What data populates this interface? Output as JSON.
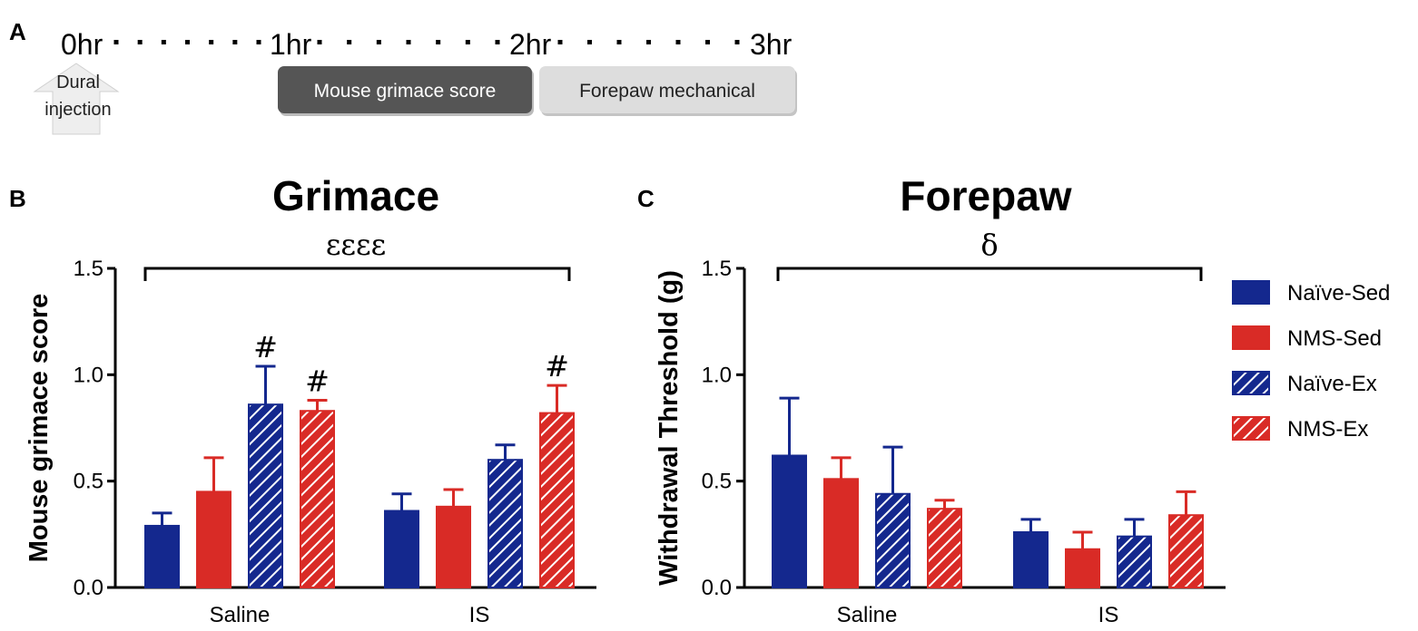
{
  "panels": {
    "a": "A",
    "b": "B",
    "c": "C"
  },
  "timeline": {
    "times": [
      "0hr",
      "1hr",
      "2hr",
      "3hr"
    ],
    "injection": {
      "line1": "Dural",
      "line2": "injection"
    },
    "box1": "Mouse grimace score",
    "box2": "Forepaw mechanical"
  },
  "colors": {
    "naive": "#14288e",
    "nms": "#d92b26",
    "box_dark": "#555555",
    "box_light": "#dddddd"
  },
  "legend": [
    {
      "label": "Naïve-Sed",
      "color": "#14288e",
      "hatched": false
    },
    {
      "label": "NMS-Sed",
      "color": "#d92b26",
      "hatched": false
    },
    {
      "label": "Naïve-Ex",
      "color": "#14288e",
      "hatched": true
    },
    {
      "label": "NMS-Ex",
      "color": "#d92b26",
      "hatched": true
    }
  ],
  "chart_data": [
    {
      "type": "bar",
      "title": "Grimace",
      "ylabel": "Mouse grimace score",
      "xlabel": "",
      "categories": [
        "Saline",
        "IS"
      ],
      "ylim": [
        0,
        1.5
      ],
      "yticks": [
        "0.0",
        "0.5",
        "1.0",
        "1.5"
      ],
      "series": [
        {
          "name": "Naïve-Sed",
          "values": [
            0.29,
            0.36
          ],
          "errors": [
            0.06,
            0.08
          ]
        },
        {
          "name": "NMS-Sed",
          "values": [
            0.45,
            0.38
          ],
          "errors": [
            0.16,
            0.08
          ]
        },
        {
          "name": "Naïve-Ex",
          "values": [
            0.86,
            0.6
          ],
          "errors": [
            0.18,
            0.07
          ]
        },
        {
          "name": "NMS-Ex",
          "values": [
            0.83,
            0.82
          ],
          "errors": [
            0.05,
            0.13
          ]
        }
      ],
      "significance": {
        "bracket": "εεεε",
        "markers": [
          {
            "category": "Saline",
            "series": "Naïve-Ex",
            "text": "#"
          },
          {
            "category": "Saline",
            "series": "NMS-Ex",
            "text": "#"
          },
          {
            "category": "IS",
            "series": "NMS-Ex",
            "text": "#"
          }
        ]
      }
    },
    {
      "type": "bar",
      "title": "Forepaw",
      "ylabel": "Withdrawal Threshold (g)",
      "xlabel": "",
      "categories": [
        "Saline",
        "IS"
      ],
      "ylim": [
        0,
        1.5
      ],
      "yticks": [
        "0.0",
        "0.5",
        "1.0",
        "1.5"
      ],
      "series": [
        {
          "name": "Naïve-Sed",
          "values": [
            0.62,
            0.26
          ],
          "errors": [
            0.27,
            0.06
          ]
        },
        {
          "name": "NMS-Sed",
          "values": [
            0.51,
            0.18
          ],
          "errors": [
            0.1,
            0.08
          ]
        },
        {
          "name": "Naïve-Ex",
          "values": [
            0.44,
            0.24
          ],
          "errors": [
            0.22,
            0.08
          ]
        },
        {
          "name": "NMS-Ex",
          "values": [
            0.37,
            0.34
          ],
          "errors": [
            0.04,
            0.11
          ]
        }
      ],
      "significance": {
        "bracket": "δ",
        "markers": []
      }
    }
  ]
}
